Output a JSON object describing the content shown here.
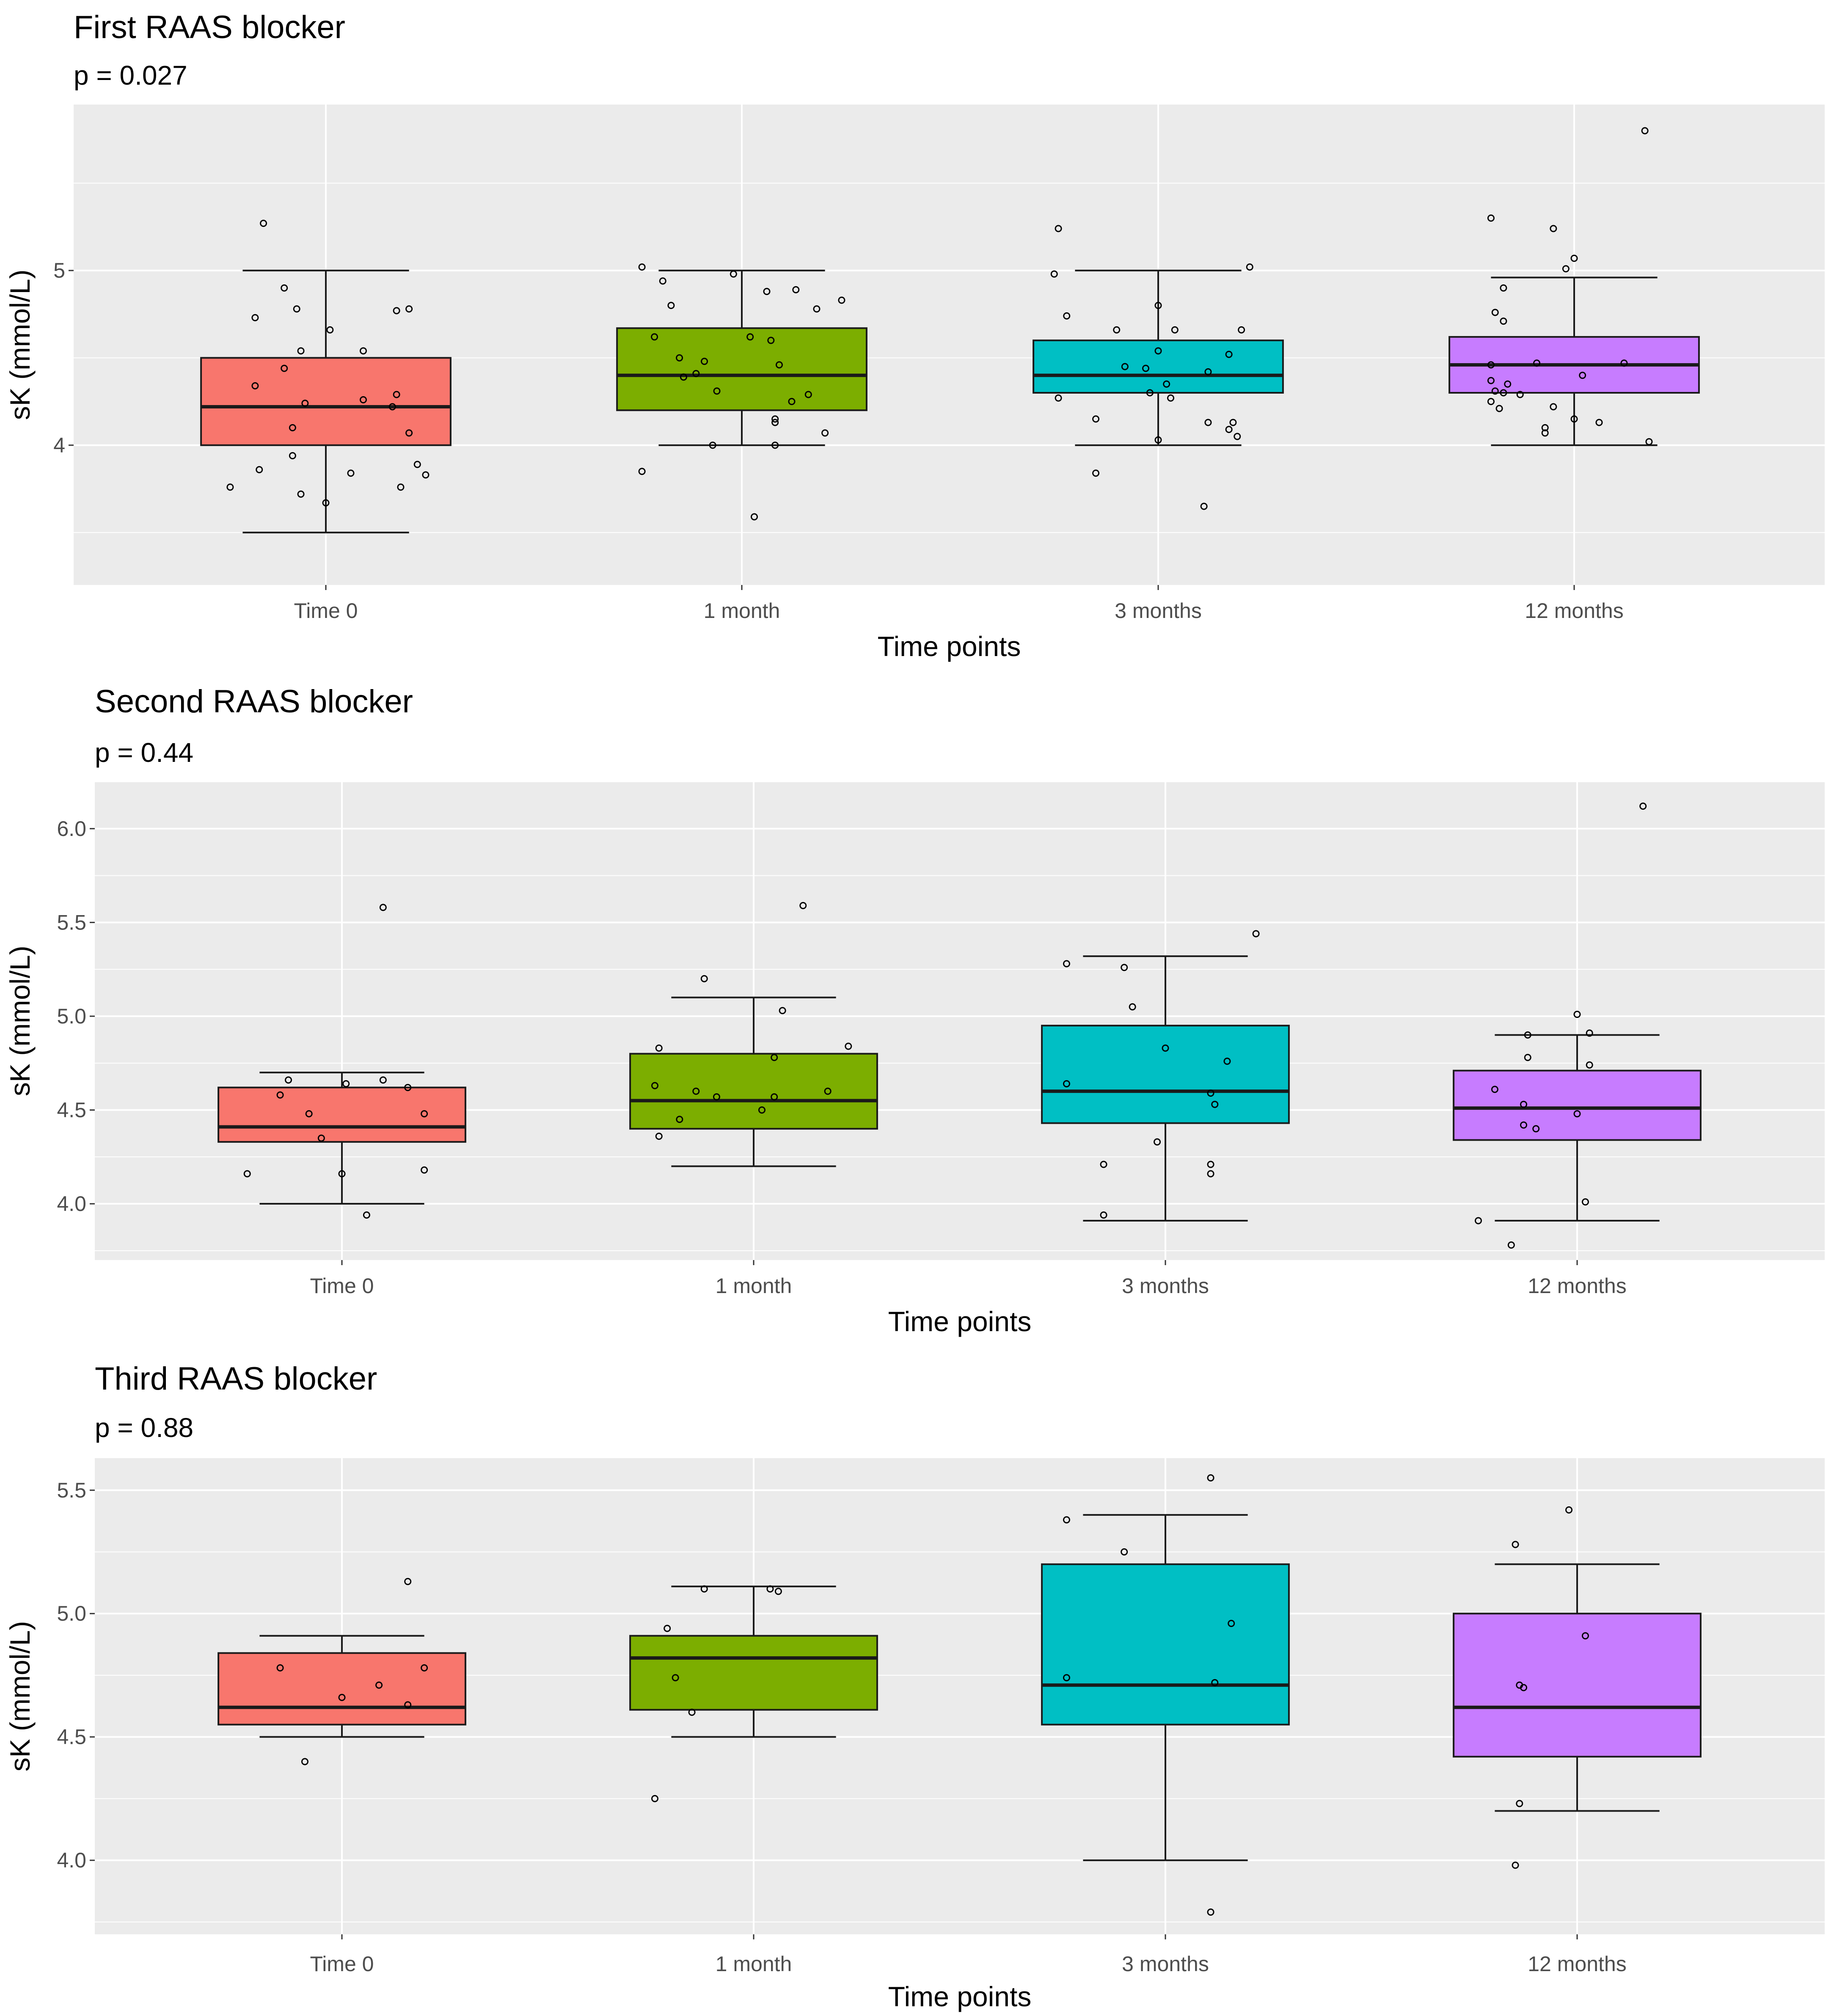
{
  "chart_data": [
    {
      "type": "box",
      "title": "First RAAS blocker",
      "subtitle": "p = 0.027",
      "xlabel": "Time points",
      "ylabel": "sK (mmol/L)",
      "ylim": [
        3.2,
        5.95
      ],
      "yticks": [
        4,
        5
      ],
      "ytick_labels": [
        "4",
        "5"
      ],
      "categories": [
        "Time 0",
        "1 month",
        "3 months",
        "12 months"
      ],
      "colors": [
        "#F8766D",
        "#7CAE00",
        "#00BFC4",
        "#C77CFF"
      ],
      "boxes": [
        {
          "whislo": 3.5,
          "q1": 4.0,
          "med": 4.22,
          "q3": 4.5,
          "whishi": 5.0
        },
        {
          "whislo": 4.0,
          "q1": 4.2,
          "med": 4.4,
          "q3": 4.67,
          "whishi": 5.0
        },
        {
          "whislo": 4.0,
          "q1": 4.3,
          "med": 4.4,
          "q3": 4.6,
          "whishi": 5.0
        },
        {
          "whislo": 4.0,
          "q1": 4.3,
          "med": 4.46,
          "q3": 4.62,
          "whishi": 4.96
        }
      ],
      "points": [
        [
          [
            -0.15,
            5.27
          ],
          [
            -0.1,
            4.9
          ],
          [
            -0.07,
            4.78
          ],
          [
            -0.17,
            4.73
          ],
          [
            -0.06,
            4.54
          ],
          [
            -0.1,
            4.44
          ],
          [
            -0.17,
            4.34
          ],
          [
            -0.05,
            4.24
          ],
          [
            0.01,
            4.66
          ],
          [
            0.09,
            4.54
          ],
          [
            0.09,
            4.26
          ],
          [
            0.17,
            4.77
          ],
          [
            0.2,
            4.78
          ],
          [
            0.17,
            4.29
          ],
          [
            0.16,
            4.22
          ],
          [
            0.2,
            4.07
          ],
          [
            -0.08,
            4.1
          ],
          [
            -0.08,
            3.94
          ],
          [
            -0.16,
            3.86
          ],
          [
            -0.23,
            3.76
          ],
          [
            -0.06,
            3.72
          ],
          [
            0.06,
            3.84
          ],
          [
            0.22,
            3.89
          ],
          [
            0.24,
            3.83
          ],
          [
            0.18,
            3.76
          ],
          [
            0.0,
            3.67
          ]
        ],
        [
          [
            -0.24,
            5.02
          ],
          [
            -0.19,
            4.94
          ],
          [
            -0.17,
            4.8
          ],
          [
            -0.21,
            4.62
          ],
          [
            -0.15,
            4.5
          ],
          [
            -0.11,
            4.41
          ],
          [
            -0.09,
            4.48
          ],
          [
            -0.14,
            4.39
          ],
          [
            -0.06,
            4.31
          ],
          [
            -0.02,
            4.98
          ],
          [
            0.06,
            4.88
          ],
          [
            0.13,
            4.89
          ],
          [
            0.18,
            4.78
          ],
          [
            0.24,
            4.83
          ],
          [
            0.02,
            4.62
          ],
          [
            0.07,
            4.6
          ],
          [
            0.09,
            4.46
          ],
          [
            0.16,
            4.29
          ],
          [
            0.12,
            4.25
          ],
          [
            0.08,
            4.15
          ],
          [
            0.08,
            4.13
          ],
          [
            0.2,
            4.07
          ],
          [
            0.08,
            4.0
          ],
          [
            -0.07,
            4.0
          ],
          [
            -0.24,
            3.85
          ],
          [
            0.03,
            3.59
          ]
        ],
        [
          [
            -0.24,
            5.24
          ],
          [
            -0.25,
            4.98
          ],
          [
            -0.22,
            4.74
          ],
          [
            -0.1,
            4.66
          ],
          [
            0.0,
            4.8
          ],
          [
            0.04,
            4.66
          ],
          [
            0.2,
            4.66
          ],
          [
            0.0,
            4.54
          ],
          [
            0.17,
            4.52
          ],
          [
            -0.08,
            4.45
          ],
          [
            -0.03,
            4.44
          ],
          [
            0.02,
            4.35
          ],
          [
            0.12,
            4.42
          ],
          [
            -0.24,
            4.27
          ],
          [
            -0.02,
            4.3
          ],
          [
            0.03,
            4.27
          ],
          [
            -0.15,
            4.15
          ],
          [
            0.12,
            4.13
          ],
          [
            0.17,
            4.09
          ],
          [
            0.18,
            4.13
          ],
          [
            0.19,
            4.05
          ],
          [
            0.0,
            4.03
          ],
          [
            -0.15,
            3.84
          ],
          [
            0.11,
            3.65
          ],
          [
            0.22,
            5.02
          ]
        ],
        [
          [
            -0.2,
            5.3
          ],
          [
            -0.05,
            5.24
          ],
          [
            -0.02,
            5.01
          ],
          [
            0.0,
            5.07
          ],
          [
            0.17,
            5.8
          ],
          [
            -0.17,
            4.9
          ],
          [
            -0.19,
            4.76
          ],
          [
            -0.17,
            4.71
          ],
          [
            -0.2,
            4.46
          ],
          [
            -0.2,
            4.37
          ],
          [
            -0.16,
            4.35
          ],
          [
            -0.19,
            4.31
          ],
          [
            -0.17,
            4.3
          ],
          [
            -0.13,
            4.29
          ],
          [
            -0.09,
            4.47
          ],
          [
            0.02,
            4.4
          ],
          [
            0.12,
            4.47
          ],
          [
            -0.05,
            4.22
          ],
          [
            0.0,
            4.15
          ],
          [
            -0.07,
            4.1
          ],
          [
            -0.07,
            4.07
          ],
          [
            0.06,
            4.13
          ],
          [
            0.18,
            4.02
          ],
          [
            -0.2,
            4.25
          ],
          [
            -0.18,
            4.21
          ]
        ]
      ]
    },
    {
      "type": "box",
      "title": "Second RAAS blocker",
      "subtitle": "p = 0.44",
      "xlabel": "Time points",
      "ylabel": "sK (mmol/L)",
      "ylim": [
        3.7,
        6.25
      ],
      "yticks": [
        4.0,
        4.5,
        5.0,
        5.5,
        6.0
      ],
      "ytick_labels": [
        "4.0",
        "4.5",
        "5.0",
        "5.5",
        "6.0"
      ],
      "categories": [
        "Time 0",
        "1 month",
        "3 months",
        "12 months"
      ],
      "colors": [
        "#F8766D",
        "#7CAE00",
        "#00BFC4",
        "#C77CFF"
      ],
      "boxes": [
        {
          "whislo": 4.0,
          "q1": 4.33,
          "med": 4.41,
          "q3": 4.62,
          "whishi": 4.7
        },
        {
          "whislo": 4.2,
          "q1": 4.4,
          "med": 4.55,
          "q3": 4.8,
          "whishi": 5.1
        },
        {
          "whislo": 3.91,
          "q1": 4.43,
          "med": 4.6,
          "q3": 4.95,
          "whishi": 5.32
        },
        {
          "whislo": 3.91,
          "q1": 4.34,
          "med": 4.51,
          "q3": 4.71,
          "whishi": 4.9
        }
      ],
      "points": [
        [
          [
            -0.15,
            4.58
          ],
          [
            -0.08,
            4.48
          ],
          [
            -0.05,
            4.35
          ],
          [
            -0.13,
            4.66
          ],
          [
            0.01,
            4.64
          ],
          [
            0.1,
            4.66
          ],
          [
            0.16,
            4.62
          ],
          [
            0.2,
            4.48
          ],
          [
            0.2,
            4.18
          ],
          [
            0.0,
            4.16
          ],
          [
            -0.23,
            4.16
          ],
          [
            0.06,
            3.94
          ],
          [
            0.1,
            5.58
          ]
        ],
        [
          [
            -0.23,
            4.83
          ],
          [
            -0.24,
            4.63
          ],
          [
            -0.14,
            4.6
          ],
          [
            -0.09,
            4.57
          ],
          [
            -0.18,
            4.45
          ],
          [
            -0.23,
            4.36
          ],
          [
            0.02,
            4.5
          ],
          [
            0.05,
            4.57
          ],
          [
            0.05,
            4.78
          ],
          [
            0.07,
            5.03
          ],
          [
            0.18,
            4.6
          ],
          [
            0.23,
            4.84
          ],
          [
            -0.12,
            5.2
          ],
          [
            0.12,
            5.59
          ]
        ],
        [
          [
            -0.24,
            5.28
          ],
          [
            -0.1,
            5.26
          ],
          [
            -0.08,
            5.05
          ],
          [
            -0.24,
            4.64
          ],
          [
            0.0,
            4.83
          ],
          [
            0.15,
            4.76
          ],
          [
            0.11,
            4.59
          ],
          [
            0.12,
            4.53
          ],
          [
            -0.02,
            4.33
          ],
          [
            -0.15,
            4.21
          ],
          [
            0.11,
            4.21
          ],
          [
            0.11,
            4.16
          ],
          [
            -0.15,
            3.94
          ],
          [
            0.22,
            5.44
          ]
        ],
        [
          [
            -0.2,
            4.61
          ],
          [
            -0.12,
            4.9
          ],
          [
            -0.12,
            4.78
          ],
          [
            -0.13,
            4.53
          ],
          [
            0.0,
            4.48
          ],
          [
            0.03,
            4.74
          ],
          [
            -0.13,
            4.42
          ],
          [
            -0.1,
            4.4
          ],
          [
            0.0,
            5.01
          ],
          [
            0.03,
            4.91
          ],
          [
            0.02,
            4.01
          ],
          [
            -0.24,
            3.91
          ],
          [
            -0.16,
            3.78
          ],
          [
            0.16,
            6.12
          ]
        ]
      ]
    },
    {
      "type": "box",
      "title": "Third RAAS blocker",
      "subtitle": "p = 0.88",
      "xlabel": "Time points",
      "ylabel": "sK (mmol/L)",
      "ylim": [
        3.7,
        5.63
      ],
      "yticks": [
        4.0,
        4.5,
        5.0,
        5.5
      ],
      "ytick_labels": [
        "4.0",
        "4.5",
        "5.0",
        "5.5"
      ],
      "categories": [
        "Time 0",
        "1 month",
        "3 months",
        "12 months"
      ],
      "colors": [
        "#F8766D",
        "#7CAE00",
        "#00BFC4",
        "#C77CFF"
      ],
      "boxes": [
        {
          "whislo": 4.5,
          "q1": 4.55,
          "med": 4.62,
          "q3": 4.84,
          "whishi": 4.91
        },
        {
          "whislo": 4.5,
          "q1": 4.61,
          "med": 4.82,
          "q3": 4.91,
          "whishi": 5.11
        },
        {
          "whislo": 4.0,
          "q1": 4.55,
          "med": 4.71,
          "q3": 5.2,
          "whishi": 5.4
        },
        {
          "whislo": 4.2,
          "q1": 4.42,
          "med": 4.62,
          "q3": 5.0,
          "whishi": 5.2
        }
      ],
      "points": [
        [
          [
            -0.15,
            4.78
          ],
          [
            0.0,
            4.66
          ],
          [
            0.09,
            4.71
          ],
          [
            0.16,
            4.63
          ],
          [
            0.2,
            4.78
          ],
          [
            -0.09,
            4.4
          ],
          [
            0.16,
            5.13
          ]
        ],
        [
          [
            -0.21,
            4.94
          ],
          [
            -0.19,
            4.74
          ],
          [
            -0.15,
            4.6
          ],
          [
            -0.12,
            5.1
          ],
          [
            0.04,
            5.1
          ],
          [
            0.06,
            5.09
          ],
          [
            -0.24,
            4.25
          ]
        ],
        [
          [
            -0.24,
            5.38
          ],
          [
            -0.1,
            5.25
          ],
          [
            0.16,
            4.96
          ],
          [
            0.12,
            4.72
          ],
          [
            -0.24,
            4.74
          ],
          [
            0.11,
            5.55
          ],
          [
            0.11,
            3.79
          ]
        ],
        [
          [
            -0.15,
            5.28
          ],
          [
            -0.14,
            4.71
          ],
          [
            -0.13,
            4.7
          ],
          [
            0.02,
            4.91
          ],
          [
            -0.14,
            4.23
          ],
          [
            -0.15,
            3.98
          ],
          [
            -0.02,
            5.42
          ]
        ]
      ]
    }
  ]
}
